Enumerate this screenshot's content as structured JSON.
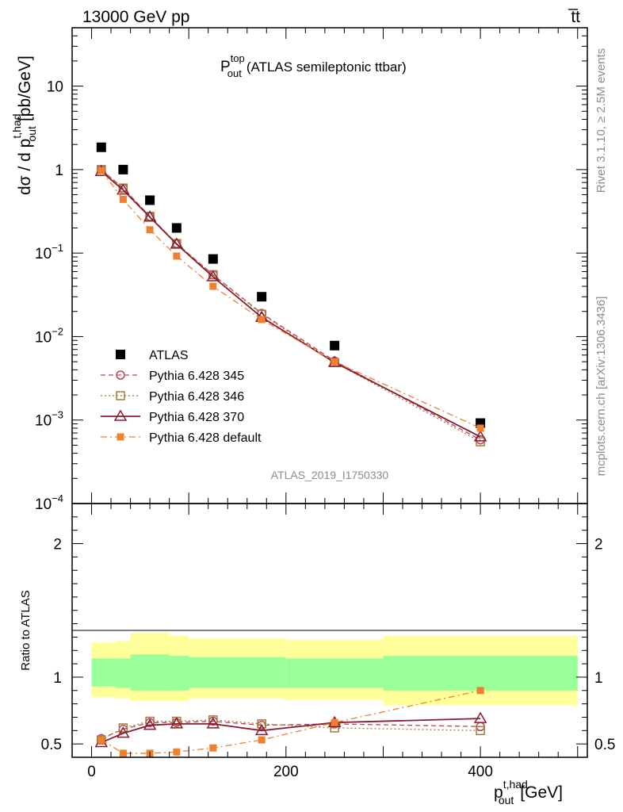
{
  "header": {
    "left": "13000 GeV pp",
    "right": "t̅t"
  },
  "side_labels": {
    "rivet": "Rivet 3.1.10, ≥ 2.5M events",
    "mcplots": "mcplots.cern.ch [arXiv:1306.3436]"
  },
  "chart_data": [
    {
      "type": "scatter",
      "panel": "main",
      "title_main": "P",
      "title_sup": "top",
      "title_sub": "out",
      "title_rest": "(ATLAS semileptonic ttbar)",
      "analysis_id": "ATLAS_2019_I1750330",
      "ylabel_main": "dσ / d p",
      "ylabel_sup": "t,had",
      "ylabel_sub": "out",
      "ylabel_unit": "[pb/GeV]",
      "yscale": "log",
      "ylim": [
        0.0001,
        50
      ],
      "xlim": [
        -20,
        510
      ],
      "y_ticks": [
        {
          "v": 10,
          "label": "10",
          "exp": ""
        },
        {
          "v": 1,
          "label": "1",
          "exp": ""
        },
        {
          "v": 0.1,
          "label": "10",
          "exp": "−1"
        },
        {
          "v": 0.01,
          "label": "10",
          "exp": "−2"
        },
        {
          "v": 0.001,
          "label": "10",
          "exp": "−3"
        },
        {
          "v": 0.0001,
          "label": "10",
          "exp": "−4"
        }
      ],
      "legend_position": "lower-left",
      "x": [
        10,
        32.5,
        60,
        87.5,
        125,
        175,
        250,
        400
      ],
      "series": [
        {
          "name": "ATLAS",
          "color": "#000000",
          "marker": "square",
          "line": "none",
          "values": [
            1.85,
            1.0,
            0.43,
            0.2,
            0.085,
            0.03,
            0.0078,
            0.00092
          ]
        },
        {
          "name": "Pythia 6.428 345",
          "color": "#c0405c",
          "marker": "circle-open",
          "line": "dashed",
          "values": [
            1.0,
            0.6,
            0.275,
            0.13,
            0.055,
            0.019,
            0.0051,
            0.00058
          ]
        },
        {
          "name": "Pythia 6.428 346",
          "color": "#a07c3c",
          "marker": "square-open",
          "line": "dotted",
          "values": [
            1.0,
            0.6,
            0.275,
            0.13,
            0.055,
            0.0185,
            0.0049,
            0.00055
          ]
        },
        {
          "name": "Pythia 6.428 370",
          "color": "#8b1a2e",
          "marker": "triangle-open",
          "line": "solid",
          "values": [
            0.95,
            0.57,
            0.27,
            0.128,
            0.052,
            0.017,
            0.0049,
            0.00063
          ]
        },
        {
          "name": "Pythia 6.428 default",
          "color": "#f08030",
          "marker": "square-small",
          "line": "dashdot",
          "values": [
            0.97,
            0.44,
            0.19,
            0.092,
            0.04,
            0.016,
            0.005,
            0.0008
          ]
        }
      ]
    },
    {
      "type": "line",
      "panel": "ratio",
      "ylabel": "Ratio to ATLAS",
      "xlabel_main": "p",
      "xlabel_sup": "t,had",
      "xlabel_sub": "out",
      "xlabel_unit": "[GeV]",
      "ylim": [
        0.4,
        2.3
      ],
      "xlim": [
        -20,
        510
      ],
      "x_ticks": [
        {
          "v": 0,
          "label": "0"
        },
        {
          "v": 200,
          "label": "200"
        },
        {
          "v": 400,
          "label": "400"
        }
      ],
      "y_ticks": [
        {
          "v": 0.5,
          "label": "0.5"
        },
        {
          "v": 1,
          "label": "1"
        },
        {
          "v": 2,
          "label": "2"
        }
      ],
      "bands": {
        "edges": [
          0,
          25,
          40,
          80,
          95,
          100,
          150,
          200,
          300,
          500
        ],
        "yellow": [
          [
            0.85,
            1.26
          ],
          [
            0.84,
            1.27
          ],
          [
            0.82,
            1.33
          ],
          [
            0.82,
            1.31
          ],
          [
            0.82,
            1.31
          ],
          [
            0.84,
            1.29
          ],
          [
            0.84,
            1.29
          ],
          [
            0.83,
            1.28
          ],
          [
            0.79,
            1.31
          ]
        ],
        "green": [
          [
            0.93,
            1.14
          ],
          [
            0.92,
            1.14
          ],
          [
            0.9,
            1.17
          ],
          [
            0.9,
            1.16
          ],
          [
            0.9,
            1.16
          ],
          [
            0.92,
            1.15
          ],
          [
            0.92,
            1.15
          ],
          [
            0.92,
            1.14
          ],
          [
            0.9,
            1.16
          ]
        ],
        "yellow_color": "#ffff99",
        "green_color": "#99ff99"
      },
      "x": [
        10,
        32.5,
        60,
        87.5,
        125,
        175,
        250,
        400
      ],
      "series": [
        {
          "name": "Pythia 6.428 345",
          "color": "#c0405c",
          "marker": "circle-open",
          "line": "dashed",
          "values": [
            0.54,
            0.61,
            0.66,
            0.66,
            0.67,
            0.64,
            0.65,
            0.63
          ]
        },
        {
          "name": "Pythia 6.428 346",
          "color": "#a07c3c",
          "marker": "square-open",
          "line": "dotted",
          "values": [
            0.53,
            0.62,
            0.67,
            0.67,
            0.68,
            0.65,
            0.62,
            0.6
          ]
        },
        {
          "name": "Pythia 6.428 370",
          "color": "#8b1a2e",
          "marker": "triangle-open",
          "line": "solid",
          "values": [
            0.51,
            0.58,
            0.64,
            0.65,
            0.65,
            0.6,
            0.66,
            0.69
          ]
        },
        {
          "name": "Pythia 6.428 default",
          "color": "#f08030",
          "marker": "square-small",
          "line": "dashdot",
          "values": [
            0.53,
            0.43,
            0.43,
            0.44,
            0.47,
            0.53,
            0.66,
            0.9
          ]
        }
      ]
    }
  ]
}
